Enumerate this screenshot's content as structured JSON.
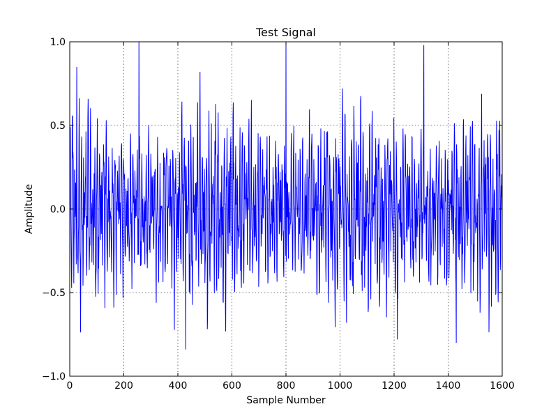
{
  "chart_data": {
    "type": "line",
    "title": "Test Signal",
    "xlabel": "Sample Number",
    "ylabel": "Amplitude",
    "xlim": [
      0,
      1600
    ],
    "ylim": [
      -1.0,
      1.0
    ],
    "xticks": [
      0,
      200,
      400,
      600,
      800,
      1000,
      1200,
      1400,
      1600
    ],
    "xtick_labels": [
      "0",
      "200",
      "400",
      "600",
      "800",
      "1000",
      "1200",
      "1400",
      "1600"
    ],
    "yticks": [
      -1.0,
      -0.5,
      0.0,
      0.5,
      1.0
    ],
    "ytick_labels": [
      "−1.0",
      "−0.5",
      "0.0",
      "0.5",
      "1.0"
    ],
    "grid": true,
    "series": [
      {
        "color": "#0000ff",
        "n_samples": 1600,
        "description": "dense oscillating signal, peaks near ±0.7, extremes from about −0.85 to 1.0",
        "extrema": [
          {
            "x": 26,
            "y": 0.85
          },
          {
            "x": 256,
            "y": 1.0
          },
          {
            "x": 800,
            "y": 0.98
          },
          {
            "x": 1310,
            "y": 0.98
          },
          {
            "x": 429,
            "y": -0.84
          },
          {
            "x": 1212,
            "y": -0.78
          },
          {
            "x": 1430,
            "y": -0.8
          }
        ]
      }
    ]
  }
}
